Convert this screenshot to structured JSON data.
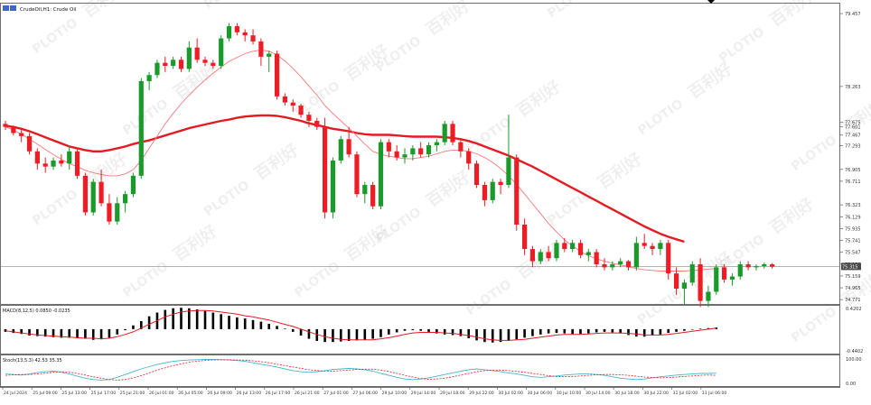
{
  "chart_title": "CrudeOil,H1: Crude Oil",
  "colors": {
    "bull": "#1a9a2a",
    "bear": "#ee1c24",
    "ma_slow": "#e31b23",
    "ma_fast": "#f07a7a",
    "macd_hist": "#000000",
    "macd_signal": "#e31b23",
    "stoch_main": "#49b5c9",
    "stoch_signal": "#e31b23",
    "border": "#6e6e6e",
    "current_price_line": "#9a9a9a",
    "price_tag_bg": "#4a4a4a"
  },
  "current_price": "75.315",
  "price_axis_labels": [
    "79.457",
    "78.263",
    "77.675",
    "77.601",
    "77.467",
    "77.293",
    "76.905",
    "76.711",
    "76.323",
    "76.129",
    "75.935",
    "75.741",
    "75.547",
    "75.353",
    "75.159",
    "74.965",
    "74.771"
  ],
  "macd": {
    "label": "MACD(8,12,5) 0.0850 -0.0235",
    "axis_top": "0.4202",
    "axis_bottom": "-0.4402",
    "hist": [
      -0.05,
      -0.07,
      -0.09,
      -0.12,
      -0.13,
      -0.14,
      -0.15,
      -0.16,
      -0.16,
      -0.17,
      -0.18,
      -0.2,
      -0.19,
      -0.16,
      -0.1,
      -0.02,
      0.07,
      0.15,
      0.24,
      0.31,
      0.36,
      0.39,
      0.4,
      0.39,
      0.37,
      0.34,
      0.31,
      0.28,
      0.25,
      0.22,
      0.2,
      0.17,
      0.14,
      0.1,
      0.06,
      0.01,
      -0.05,
      -0.12,
      -0.18,
      -0.22,
      -0.24,
      -0.24,
      -0.23,
      -0.22,
      -0.21,
      -0.2,
      -0.18,
      -0.15,
      -0.1,
      -0.06,
      -0.03,
      -0.02,
      -0.03,
      -0.05,
      -0.08,
      -0.1,
      -0.11,
      -0.13,
      -0.17,
      -0.21,
      -0.24,
      -0.25,
      -0.24,
      -0.22,
      -0.19,
      -0.16,
      -0.13,
      -0.1,
      -0.08,
      -0.07,
      -0.08,
      -0.09,
      -0.09,
      -0.08,
      -0.06,
      -0.05,
      -0.06,
      -0.08,
      -0.11,
      -0.14,
      -0.14,
      -0.12,
      -0.1,
      -0.07,
      -0.05,
      -0.03,
      -0.01,
      0.01,
      0.02,
      0.03
    ],
    "signal": [
      -0.03,
      -0.05,
      -0.07,
      -0.09,
      -0.11,
      -0.12,
      -0.13,
      -0.14,
      -0.15,
      -0.16,
      -0.17,
      -0.17,
      -0.18,
      -0.17,
      -0.14,
      -0.1,
      -0.05,
      0.02,
      0.09,
      0.16,
      0.23,
      0.28,
      0.32,
      0.34,
      0.35,
      0.35,
      0.34,
      0.32,
      0.3,
      0.28,
      0.25,
      0.23,
      0.2,
      0.17,
      0.13,
      0.09,
      0.05,
      0.0,
      -0.05,
      -0.1,
      -0.14,
      -0.17,
      -0.19,
      -0.2,
      -0.2,
      -0.2,
      -0.2,
      -0.18,
      -0.16,
      -0.13,
      -0.1,
      -0.07,
      -0.06,
      -0.06,
      -0.06,
      -0.07,
      -0.08,
      -0.1,
      -0.12,
      -0.15,
      -0.18,
      -0.2,
      -0.21,
      -0.21,
      -0.2,
      -0.19,
      -0.17,
      -0.15,
      -0.13,
      -0.11,
      -0.1,
      -0.1,
      -0.1,
      -0.09,
      -0.08,
      -0.07,
      -0.07,
      -0.07,
      -0.08,
      -0.09,
      -0.11,
      -0.11,
      -0.11,
      -0.1,
      -0.08,
      -0.06,
      -0.04,
      -0.02,
      0.0,
      0.02
    ]
  },
  "stoch": {
    "label": "Stoch(13,5,3) 42.53 35.35",
    "axis_top": "100.00",
    "axis_bottom": "0.00",
    "main": [
      40,
      38,
      36,
      40,
      45,
      48,
      50,
      46,
      40,
      32,
      25,
      20,
      18,
      20,
      28,
      38,
      48,
      58,
      66,
      74,
      80,
      85,
      88,
      90,
      91,
      92,
      92,
      91,
      90,
      88,
      85,
      80,
      75,
      70,
      65,
      58,
      52,
      48,
      46,
      48,
      52,
      56,
      58,
      60,
      58,
      55,
      50,
      42,
      35,
      28,
      22,
      20,
      22,
      26,
      32,
      38,
      44,
      50,
      55,
      58,
      55,
      52,
      48,
      44,
      40,
      35,
      30,
      28,
      30,
      33,
      36,
      38,
      40,
      40,
      38,
      35,
      30,
      25,
      22,
      20,
      22,
      26,
      30,
      33,
      36,
      38,
      40,
      42,
      42,
      43
    ],
    "signal": [
      35,
      37,
      38,
      38,
      40,
      43,
      46,
      48,
      46,
      42,
      36,
      30,
      25,
      20,
      18,
      20,
      26,
      34,
      44,
      54,
      62,
      70,
      76,
      82,
      86,
      88,
      90,
      91,
      91,
      90,
      89,
      87,
      84,
      80,
      75,
      70,
      65,
      60,
      55,
      52,
      50,
      50,
      52,
      54,
      56,
      57,
      57,
      54,
      49,
      42,
      35,
      29,
      24,
      21,
      22,
      25,
      30,
      36,
      42,
      48,
      52,
      54,
      54,
      52,
      49,
      46,
      42,
      38,
      34,
      31,
      30,
      31,
      33,
      35,
      37,
      38,
      38,
      37,
      35,
      32,
      29,
      27,
      26,
      27,
      29,
      31,
      33,
      35,
      36,
      35
    ]
  },
  "time_labels": [
    "24 Jul 2024",
    "25 Jul 09:00",
    "25 Jul 13:00",
    "25 Jul 17:00",
    "25 Jul 21:00",
    "26 Jul 01:00",
    "26 Jul 05:00",
    "26 Jul 09:00",
    "26 Jul 13:00",
    "26 Jul 17:00",
    "26 Jul 21:00",
    "27 Jul 01:00",
    "27 Jul 06:00",
    "29 Jul 10:00",
    "29 Jul 14:00",
    "29 Jul 18:00",
    "29 Jul 22:00",
    "30 Jul 02:00",
    "30 Jul 06:00",
    "30 Jul 10:00",
    "30 Jul 14:00",
    "30 Jul 18:00",
    "30 Jul 22:00",
    "31 Jul 02:00",
    "31 Jul 06:00"
  ],
  "watermarks": [
    "PLOTIO",
    "百利好"
  ],
  "chart_data": {
    "type": "candlestick",
    "symbol": "CrudeOil",
    "timeframe": "H1",
    "ylim": [
      74.7,
      79.62
    ],
    "candles": [
      [
        77.65,
        77.7,
        77.55,
        77.6
      ],
      [
        77.6,
        77.62,
        77.46,
        77.5
      ],
      [
        77.5,
        77.55,
        77.35,
        77.45
      ],
      [
        77.45,
        77.5,
        77.15,
        77.2
      ],
      [
        77.2,
        77.25,
        76.9,
        77.0
      ],
      [
        77.0,
        77.1,
        76.85,
        76.95
      ],
      [
        76.95,
        77.1,
        76.9,
        77.05
      ],
      [
        77.05,
        77.15,
        76.95,
        77.0
      ],
      [
        77.0,
        77.3,
        76.9,
        77.2
      ],
      [
        77.2,
        77.25,
        76.75,
        76.8
      ],
      [
        76.8,
        76.85,
        76.15,
        76.2
      ],
      [
        76.2,
        76.75,
        76.15,
        76.7
      ],
      [
        76.7,
        76.9,
        76.3,
        76.35
      ],
      [
        76.35,
        76.5,
        76.0,
        76.05
      ],
      [
        76.05,
        76.45,
        76.0,
        76.35
      ],
      [
        76.35,
        76.55,
        76.2,
        76.5
      ],
      [
        76.5,
        76.85,
        76.45,
        76.8
      ],
      [
        76.8,
        78.4,
        76.75,
        78.35
      ],
      [
        78.35,
        78.5,
        78.2,
        78.45
      ],
      [
        78.45,
        78.7,
        78.4,
        78.65
      ],
      [
        78.65,
        78.75,
        78.5,
        78.6
      ],
      [
        78.6,
        78.75,
        78.55,
        78.7
      ],
      [
        78.7,
        78.75,
        78.5,
        78.55
      ],
      [
        78.55,
        79.0,
        78.5,
        78.9
      ],
      [
        78.9,
        79.05,
        78.65,
        78.7
      ],
      [
        78.7,
        78.75,
        78.6,
        78.65
      ],
      [
        78.65,
        78.7,
        78.55,
        78.6
      ],
      [
        78.6,
        79.1,
        78.55,
        79.05
      ],
      [
        79.05,
        79.3,
        79.0,
        79.25
      ],
      [
        79.25,
        79.3,
        79.1,
        79.15
      ],
      [
        79.15,
        79.2,
        79.0,
        79.1
      ],
      [
        79.1,
        79.2,
        78.95,
        79.0
      ],
      [
        79.0,
        79.05,
        78.6,
        78.75
      ],
      [
        78.75,
        78.85,
        78.5,
        78.8
      ],
      [
        78.8,
        78.85,
        78.05,
        78.1
      ],
      [
        78.1,
        78.15,
        77.95,
        78.0
      ],
      [
        78.0,
        78.05,
        77.85,
        77.95
      ],
      [
        77.95,
        77.98,
        77.75,
        77.8
      ],
      [
        77.8,
        77.85,
        77.6,
        77.7
      ],
      [
        77.7,
        77.75,
        77.55,
        77.6
      ],
      [
        77.6,
        77.75,
        76.1,
        76.2
      ],
      [
        76.2,
        77.1,
        76.1,
        77.05
      ],
      [
        77.05,
        77.45,
        77.0,
        77.4
      ],
      [
        77.4,
        77.6,
        77.1,
        77.15
      ],
      [
        77.15,
        77.2,
        76.45,
        76.5
      ],
      [
        76.5,
        76.7,
        76.35,
        76.65
      ],
      [
        76.65,
        76.7,
        76.25,
        76.3
      ],
      [
        76.3,
        77.4,
        76.25,
        77.35
      ],
      [
        77.35,
        77.4,
        77.1,
        77.2
      ],
      [
        77.2,
        77.3,
        77.05,
        77.1
      ],
      [
        77.1,
        77.25,
        77.0,
        77.15
      ],
      [
        77.15,
        77.3,
        77.05,
        77.25
      ],
      [
        77.25,
        77.35,
        77.1,
        77.15
      ],
      [
        77.15,
        77.35,
        77.1,
        77.3
      ],
      [
        77.3,
        77.4,
        77.2,
        77.35
      ],
      [
        77.35,
        77.7,
        77.3,
        77.65
      ],
      [
        77.65,
        77.7,
        77.3,
        77.35
      ],
      [
        77.35,
        77.4,
        77.1,
        77.2
      ],
      [
        77.2,
        77.25,
        76.9,
        77.0
      ],
      [
        77.0,
        77.05,
        76.6,
        76.65
      ],
      [
        76.65,
        76.7,
        76.3,
        76.4
      ],
      [
        76.4,
        76.75,
        76.35,
        76.7
      ],
      [
        76.7,
        76.75,
        76.5,
        76.65
      ],
      [
        76.65,
        77.8,
        76.6,
        77.1
      ],
      [
        77.1,
        77.15,
        75.9,
        76.0
      ],
      [
        76.0,
        76.1,
        75.5,
        75.6
      ],
      [
        75.6,
        75.65,
        75.3,
        75.4
      ],
      [
        75.4,
        75.6,
        75.35,
        75.55
      ],
      [
        75.55,
        75.65,
        75.4,
        75.45
      ],
      [
        75.45,
        75.75,
        75.4,
        75.7
      ],
      [
        75.7,
        75.78,
        75.55,
        75.6
      ],
      [
        75.6,
        75.75,
        75.55,
        75.7
      ],
      [
        75.7,
        75.75,
        75.45,
        75.5
      ],
      [
        75.5,
        75.6,
        75.4,
        75.55
      ],
      [
        75.55,
        75.6,
        75.3,
        75.35
      ],
      [
        75.35,
        75.45,
        75.25,
        75.3
      ],
      [
        75.3,
        75.4,
        75.25,
        75.35
      ],
      [
        75.35,
        75.45,
        75.3,
        75.4
      ],
      [
        75.4,
        75.42,
        75.25,
        75.3
      ],
      [
        75.3,
        75.8,
        75.25,
        75.7
      ],
      [
        75.7,
        75.85,
        75.6,
        75.65
      ],
      [
        75.65,
        75.7,
        75.5,
        75.6
      ],
      [
        75.6,
        75.75,
        75.5,
        75.7
      ],
      [
        75.7,
        75.75,
        75.1,
        75.2
      ],
      [
        75.2,
        75.3,
        74.85,
        74.95
      ],
      [
        74.95,
        75.1,
        74.7,
        75.05
      ],
      [
        75.05,
        75.4,
        75.0,
        75.35
      ],
      [
        75.35,
        75.45,
        74.65,
        74.75
      ],
      [
        74.75,
        75.0,
        74.65,
        74.9
      ],
      [
        74.9,
        75.35,
        74.85,
        75.3
      ],
      [
        75.3,
        75.35,
        75.05,
        75.1
      ],
      [
        75.1,
        75.2,
        75.0,
        75.15
      ],
      [
        75.15,
        75.4,
        75.1,
        75.35
      ],
      [
        75.35,
        75.4,
        75.25,
        75.3
      ],
      [
        75.3,
        75.35,
        75.25,
        75.32
      ],
      [
        75.32,
        75.38,
        75.28,
        75.35
      ],
      [
        75.35,
        75.37,
        75.28,
        75.31
      ]
    ],
    "ma_slow": [
      77.62,
      77.6,
      77.57,
      77.53,
      77.48,
      77.43,
      77.38,
      77.33,
      77.28,
      77.25,
      77.22,
      77.2,
      77.2,
      77.22,
      77.25,
      77.28,
      77.32,
      77.35,
      77.38,
      77.42,
      77.46,
      77.5,
      77.54,
      77.58,
      77.61,
      77.64,
      77.67,
      77.7,
      77.72,
      77.75,
      77.77,
      77.78,
      77.79,
      77.79,
      77.78,
      77.76,
      77.73,
      77.7,
      77.66,
      77.63,
      77.6,
      77.57,
      77.55,
      77.53,
      77.5,
      77.48,
      77.47,
      77.47,
      77.47,
      77.46,
      77.45,
      77.44,
      77.44,
      77.44,
      77.44,
      77.43,
      77.42,
      77.4,
      77.37,
      77.33,
      77.28,
      77.23,
      77.18,
      77.13,
      77.07,
      77.01,
      76.95,
      76.88,
      76.81,
      76.74,
      76.67,
      76.6,
      76.53,
      76.46,
      76.39,
      76.32,
      76.25,
      76.18,
      76.11,
      76.04,
      75.97,
      75.91,
      75.85,
      75.8,
      75.76,
      75.72
    ],
    "ma_fast": [
      77.6,
      77.55,
      77.48,
      77.4,
      77.32,
      77.23,
      77.15,
      77.07,
      77.0,
      76.95,
      76.89,
      76.85,
      76.82,
      76.8,
      76.8,
      76.83,
      76.9,
      77.05,
      77.25,
      77.45,
      77.65,
      77.82,
      77.98,
      78.12,
      78.25,
      78.37,
      78.48,
      78.58,
      78.67,
      78.74,
      78.8,
      78.84,
      78.86,
      78.84,
      78.78,
      78.68,
      78.56,
      78.42,
      78.27,
      78.12,
      77.95,
      77.82,
      77.7,
      77.58,
      77.45,
      77.32,
      77.2,
      77.15,
      77.12,
      77.1,
      77.08,
      77.08,
      77.1,
      77.12,
      77.16,
      77.2,
      77.22,
      77.22,
      77.2,
      77.16,
      77.1,
      77.02,
      76.92,
      76.8,
      76.66,
      76.5,
      76.34,
      76.18,
      76.02,
      75.88,
      75.75,
      75.65,
      75.56,
      75.49,
      75.44,
      75.4,
      75.37,
      75.34,
      75.31,
      75.28,
      75.26,
      75.25,
      75.24,
      75.24,
      75.24,
      75.24,
      75.25,
      75.26,
      75.27,
      75.28
    ]
  }
}
